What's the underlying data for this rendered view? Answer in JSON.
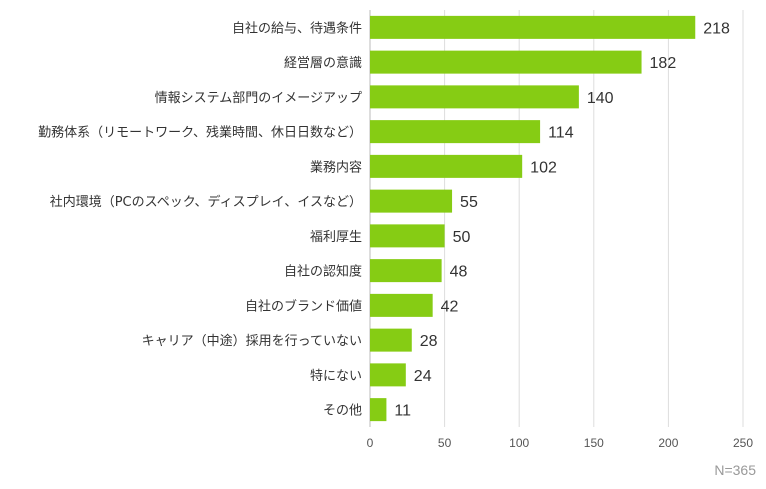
{
  "chart_data": {
    "type": "bar",
    "orientation": "horizontal",
    "categories": [
      "自社の給与、待遇条件",
      "経営層の意識",
      "情報システム部門のイメージアップ",
      "勤務体系（リモートワーク、残業時間、休日日数など）",
      "業務内容",
      "社内環境（PCのスペック、ディスプレイ、イスなど）",
      "福利厚生",
      "自社の認知度",
      "自社のブランド価値",
      "キャリア（中途）採用を行っていない",
      "特にない",
      "その他"
    ],
    "values": [
      218,
      182,
      140,
      114,
      102,
      55,
      50,
      48,
      42,
      28,
      24,
      11
    ],
    "xlim": [
      0,
      250
    ],
    "xticks": [
      0,
      50,
      100,
      150,
      200,
      250
    ],
    "grid": true,
    "bar_color": "#86cc14",
    "note": "N=365"
  }
}
